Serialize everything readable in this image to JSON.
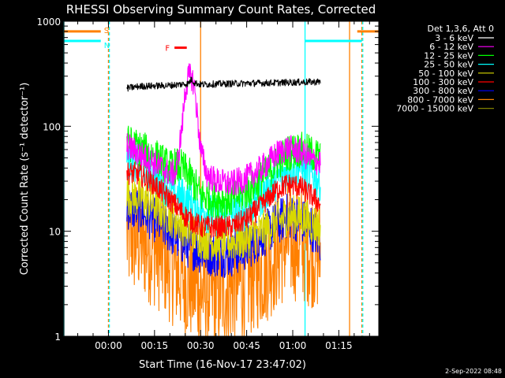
{
  "chart_data": {
    "type": "line",
    "title": "RHESSI Observing Summary Count Rates, Corrected",
    "xlabel": "Start Time (16-Nov-17 23:47:02)",
    "ylabel": "Corrected Count Rate (s⁻¹ detector⁻¹)",
    "y_scale": "log",
    "ylim": [
      1,
      1000
    ],
    "xlim_minutes": [
      -14.5,
      88
    ],
    "x_ticks": [
      {
        "min": 0,
        "label": "00:00"
      },
      {
        "min": 15,
        "label": "00:15"
      },
      {
        "min": 30,
        "label": "00:30"
      },
      {
        "min": 45,
        "label": "00:45"
      },
      {
        "min": 60,
        "label": "01:00"
      },
      {
        "min": 75,
        "label": "01:15"
      }
    ],
    "y_ticks": [
      {
        "value": 1,
        "label": "1"
      },
      {
        "value": 10,
        "label": "10"
      },
      {
        "value": 100,
        "label": "100"
      },
      {
        "value": 1000,
        "label": "1000"
      }
    ],
    "legend": {
      "header": "Det 1,3,6, Att 0",
      "position": "right",
      "items": [
        {
          "label": "3 - 6 keV",
          "color": "#ffffff"
        },
        {
          "label": "6 - 12 keV",
          "color": "#ff00ff"
        },
        {
          "label": "12 - 25 keV",
          "color": "#00ff00"
        },
        {
          "label": "25 - 50 keV",
          "color": "#00ffff"
        },
        {
          "label": "50 - 100 keV",
          "color": "#d8d800"
        },
        {
          "label": "100 - 300 keV",
          "color": "#ff0000"
        },
        {
          "label": "300 - 800 keV",
          "color": "#0000ff"
        },
        {
          "label": "800 - 7000 keV",
          "color": "#ff8000"
        },
        {
          "label": "7000 - 15000 keV",
          "color": "#808000"
        }
      ]
    },
    "data_window_min": [
      6,
      69
    ],
    "series": [
      {
        "name": "3 - 6 keV",
        "color": "#000000",
        "noise": 0.015,
        "points": [
          [
            6,
            230
          ],
          [
            10,
            240
          ],
          [
            20,
            245
          ],
          [
            26,
            255
          ],
          [
            27,
            280
          ],
          [
            28,
            260
          ],
          [
            30,
            250
          ],
          [
            40,
            255
          ],
          [
            50,
            258
          ],
          [
            60,
            262
          ],
          [
            69,
            265
          ]
        ]
      },
      {
        "name": "6 - 12 keV",
        "color": "#ff00ff",
        "noise": 0.06,
        "points": [
          [
            6,
            65
          ],
          [
            10,
            55
          ],
          [
            15,
            45
          ],
          [
            20,
            35
          ],
          [
            22,
            36
          ],
          [
            24,
            100
          ],
          [
            25,
            220
          ],
          [
            26,
            290
          ],
          [
            27,
            300
          ],
          [
            28,
            240
          ],
          [
            29,
            120
          ],
          [
            30,
            60
          ],
          [
            32,
            35
          ],
          [
            35,
            30
          ],
          [
            40,
            28
          ],
          [
            45,
            32
          ],
          [
            50,
            40
          ],
          [
            55,
            55
          ],
          [
            58,
            62
          ],
          [
            62,
            58
          ],
          [
            66,
            48
          ],
          [
            69,
            45
          ]
        ]
      },
      {
        "name": "12 - 25 keV",
        "color": "#00ff00",
        "noise": 0.08,
        "points": [
          [
            6,
            70
          ],
          [
            10,
            62
          ],
          [
            15,
            52
          ],
          [
            20,
            40
          ],
          [
            22,
            42
          ],
          [
            24,
            40
          ],
          [
            26,
            35
          ],
          [
            28,
            28
          ],
          [
            30,
            22
          ],
          [
            35,
            20
          ],
          [
            40,
            20
          ],
          [
            45,
            24
          ],
          [
            50,
            32
          ],
          [
            55,
            45
          ],
          [
            58,
            55
          ],
          [
            62,
            60
          ],
          [
            66,
            55
          ],
          [
            69,
            50
          ]
        ]
      },
      {
        "name": "25 - 50 keV",
        "color": "#00ffff",
        "noise": 0.09,
        "points": [
          [
            6,
            50
          ],
          [
            10,
            45
          ],
          [
            15,
            35
          ],
          [
            20,
            25
          ],
          [
            25,
            20
          ],
          [
            30,
            16
          ],
          [
            35,
            14
          ],
          [
            40,
            14
          ],
          [
            45,
            16
          ],
          [
            50,
            22
          ],
          [
            55,
            32
          ],
          [
            58,
            38
          ],
          [
            62,
            42
          ],
          [
            66,
            35
          ],
          [
            69,
            30
          ]
        ]
      },
      {
        "name": "50 - 100 keV",
        "color": "#d8d800",
        "noise": 0.09,
        "points": [
          [
            6,
            22
          ],
          [
            10,
            21
          ],
          [
            15,
            18
          ],
          [
            20,
            14
          ],
          [
            25,
            11
          ],
          [
            30,
            8.5
          ],
          [
            35,
            8
          ],
          [
            40,
            8
          ],
          [
            45,
            8.5
          ],
          [
            50,
            10
          ],
          [
            55,
            12
          ],
          [
            58,
            14
          ],
          [
            62,
            14
          ],
          [
            66,
            12
          ],
          [
            69,
            11
          ]
        ]
      },
      {
        "name": "100 - 300 keV",
        "color": "#ff0000",
        "noise": 0.05,
        "points": [
          [
            6,
            36
          ],
          [
            10,
            35
          ],
          [
            15,
            28
          ],
          [
            20,
            20
          ],
          [
            25,
            14
          ],
          [
            30,
            11
          ],
          [
            35,
            11
          ],
          [
            40,
            11
          ],
          [
            45,
            13
          ],
          [
            50,
            18
          ],
          [
            55,
            25
          ],
          [
            58,
            28
          ],
          [
            62,
            27
          ],
          [
            66,
            22
          ],
          [
            69,
            18
          ]
        ]
      },
      {
        "name": "300 - 800 keV",
        "color": "#0000ff",
        "noise": 0.1,
        "points": [
          [
            6,
            17
          ],
          [
            10,
            16
          ],
          [
            15,
            13
          ],
          [
            20,
            10
          ],
          [
            25,
            7.5
          ],
          [
            30,
            6.5
          ],
          [
            35,
            6
          ],
          [
            40,
            6
          ],
          [
            45,
            7
          ],
          [
            50,
            9
          ],
          [
            55,
            12
          ],
          [
            58,
            14
          ],
          [
            62,
            13
          ],
          [
            66,
            11
          ],
          [
            69,
            8
          ]
        ]
      },
      {
        "name": "800 - 7000 keV",
        "color": "#ff8000",
        "noise": 0.18,
        "points": [
          [
            6,
            9
          ],
          [
            10,
            8.5
          ],
          [
            15,
            7
          ],
          [
            20,
            5
          ],
          [
            25,
            3.5
          ],
          [
            30,
            2.8
          ],
          [
            35,
            2.6
          ],
          [
            40,
            3
          ],
          [
            45,
            3.5
          ],
          [
            50,
            4.5
          ],
          [
            55,
            6.5
          ],
          [
            58,
            8
          ],
          [
            62,
            8
          ],
          [
            66,
            7
          ],
          [
            69,
            6
          ]
        ]
      }
    ],
    "spacecraft_flags": [
      {
        "name": "S",
        "label": "S",
        "color": "#ff8000",
        "level": 800,
        "intervals": [
          [
            -14.5,
            -2.5
          ],
          [
            81,
            88
          ]
        ]
      },
      {
        "name": "N",
        "label": "N",
        "color": "#00ffff",
        "level": 650,
        "intervals": [
          [
            -14.5,
            -2.5
          ],
          [
            64,
            82.5
          ]
        ]
      },
      {
        "name": "F",
        "label": "F",
        "color": "#ff0000",
        "level": 560,
        "intervals": [
          [
            21.5,
            25.5
          ]
        ]
      }
    ],
    "vertical_markers": [
      {
        "name": "orange-solid-a",
        "color": "#ff8000",
        "style": "solid",
        "min": 30
      },
      {
        "name": "orange-solid-b",
        "color": "#ff8000",
        "style": "solid",
        "min": 78.5
      },
      {
        "name": "orange-dashed-a",
        "color": "#ff8000",
        "style": "dashed",
        "min": 0
      },
      {
        "name": "orange-dashed-b",
        "color": "#ff8000",
        "style": "dashed",
        "min": 82.5
      },
      {
        "name": "cyan-solid-a",
        "color": "#00ffff",
        "style": "solid",
        "min": -14.5
      },
      {
        "name": "cyan-solid-b",
        "color": "#00ffff",
        "style": "solid",
        "min": 64
      },
      {
        "name": "cyan-dashed-a",
        "color": "#00ffff",
        "style": "dashed",
        "min": 0.3
      },
      {
        "name": "cyan-dashed-b",
        "color": "#00ffff",
        "style": "dashed",
        "min": 82.8
      }
    ],
    "footer": "2-Sep-2022 08:48"
  }
}
